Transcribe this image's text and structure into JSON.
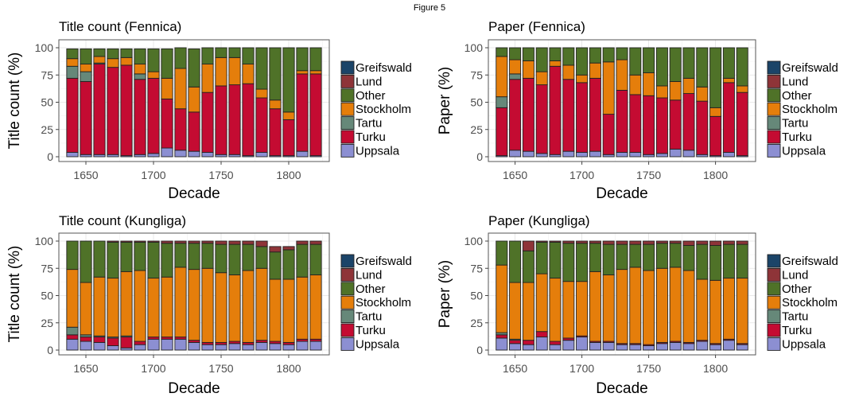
{
  "figure": {
    "title": "Figure 5"
  },
  "colors": {
    "Greifswald": "#1b4468",
    "Lund": "#8e3438",
    "Other": "#4f7228",
    "Stockholm": "#e57e0b",
    "Tartu": "#668879",
    "Turku": "#c40b32",
    "Uppsala": "#8c8fd2"
  },
  "chart_data": [
    {
      "type": "bar",
      "stacked": true,
      "title": "Title count (Fennica)",
      "xlabel": "Decade",
      "ylabel": "Title count (%)",
      "ylim": [
        0,
        100
      ],
      "xlim": [
        1630,
        1830
      ],
      "xticks": [
        1650,
        1700,
        1750,
        1800
      ],
      "yticks": [
        0,
        25,
        50,
        75,
        100
      ],
      "grid": true,
      "legend_position": "right",
      "legend": [
        "Greifswald",
        "Lund",
        "Other",
        "Stockholm",
        "Tartu",
        "Turku",
        "Uppsala"
      ],
      "categories": [
        1640,
        1650,
        1660,
        1670,
        1680,
        1690,
        1700,
        1710,
        1720,
        1730,
        1740,
        1750,
        1760,
        1770,
        1780,
        1790,
        1800,
        1810,
        1820
      ],
      "series": [
        {
          "name": "Uppsala",
          "values": [
            4,
            2,
            2,
            2,
            1,
            2,
            3,
            8,
            6,
            5,
            4,
            2,
            2,
            1,
            4,
            1,
            1,
            5,
            1
          ]
        },
        {
          "name": "Turku",
          "values": [
            68,
            67,
            83,
            80,
            83,
            69,
            69,
            45,
            38,
            36,
            55,
            63,
            64,
            66,
            50,
            43,
            33,
            71,
            75
          ]
        },
        {
          "name": "Tartu",
          "values": [
            11,
            9,
            1,
            0,
            0,
            5,
            0,
            0,
            0,
            0,
            0,
            0,
            0,
            0,
            0,
            0,
            0,
            0,
            0
          ]
        },
        {
          "name": "Stockholm",
          "values": [
            7,
            7,
            6,
            8,
            7,
            9,
            6,
            19,
            37,
            23,
            26,
            26,
            25,
            18,
            8,
            8,
            7,
            3,
            3
          ]
        },
        {
          "name": "Other",
          "values": [
            9,
            14,
            7,
            9,
            8,
            14,
            21,
            27,
            19,
            35,
            15,
            9,
            9,
            15,
            38,
            48,
            59,
            21,
            21
          ]
        },
        {
          "name": "Lund",
          "values": [
            0,
            0,
            0,
            0,
            0,
            0,
            0,
            0,
            0,
            0,
            0,
            0,
            0,
            0,
            0,
            0,
            0,
            0,
            0
          ]
        },
        {
          "name": "Greifswald",
          "values": [
            0,
            0,
            0,
            0,
            0,
            0,
            0,
            0,
            0,
            0,
            0,
            0,
            0,
            0,
            0,
            0,
            0,
            0,
            0
          ]
        }
      ]
    },
    {
      "type": "bar",
      "stacked": true,
      "title": "Paper (Fennica)",
      "xlabel": "Decade",
      "ylabel": "Paper (%)",
      "ylim": [
        0,
        100
      ],
      "xlim": [
        1630,
        1830
      ],
      "xticks": [
        1650,
        1700,
        1750,
        1800
      ],
      "yticks": [
        0,
        25,
        50,
        75,
        100
      ],
      "grid": true,
      "legend_position": "right",
      "legend": [
        "Greifswald",
        "Lund",
        "Other",
        "Stockholm",
        "Tartu",
        "Turku",
        "Uppsala"
      ],
      "categories": [
        1640,
        1650,
        1660,
        1670,
        1680,
        1690,
        1700,
        1710,
        1720,
        1730,
        1740,
        1750,
        1760,
        1770,
        1780,
        1790,
        1800,
        1810,
        1820
      ],
      "series": [
        {
          "name": "Uppsala",
          "values": [
            1,
            6,
            5,
            3,
            2,
            5,
            4,
            5,
            2,
            4,
            4,
            2,
            3,
            7,
            6,
            2,
            1,
            4,
            1
          ]
        },
        {
          "name": "Turku",
          "values": [
            44,
            65,
            67,
            63,
            81,
            66,
            64,
            67,
            37,
            57,
            53,
            54,
            51,
            45,
            52,
            49,
            36,
            64,
            58
          ]
        },
        {
          "name": "Tartu",
          "values": [
            10,
            5,
            0,
            0,
            0,
            0,
            0,
            0,
            0,
            0,
            0,
            0,
            0,
            0,
            0,
            0,
            0,
            0,
            0
          ]
        },
        {
          "name": "Stockholm",
          "values": [
            37,
            13,
            16,
            12,
            5,
            13,
            7,
            14,
            48,
            28,
            18,
            21,
            11,
            17,
            14,
            13,
            8,
            4,
            6
          ]
        },
        {
          "name": "Other",
          "values": [
            8,
            11,
            12,
            22,
            12,
            16,
            25,
            14,
            13,
            11,
            25,
            23,
            35,
            31,
            28,
            36,
            55,
            28,
            35
          ]
        },
        {
          "name": "Lund",
          "values": [
            0,
            0,
            0,
            0,
            0,
            0,
            0,
            0,
            0,
            0,
            0,
            0,
            0,
            0,
            0,
            0,
            0,
            0,
            0
          ]
        },
        {
          "name": "Greifswald",
          "values": [
            0,
            0,
            0,
            0,
            0,
            0,
            0,
            0,
            0,
            0,
            0,
            0,
            0,
            0,
            0,
            0,
            0,
            0,
            0
          ]
        }
      ]
    },
    {
      "type": "bar",
      "stacked": true,
      "title": "Title count (Kungliga)",
      "xlabel": "Decade",
      "ylabel": "Title count (%)",
      "ylim": [
        0,
        100
      ],
      "xlim": [
        1630,
        1830
      ],
      "xticks": [
        1650,
        1700,
        1750,
        1800
      ],
      "yticks": [
        0,
        25,
        50,
        75,
        100
      ],
      "grid": true,
      "legend_position": "right",
      "legend": [
        "Greifswald",
        "Lund",
        "Other",
        "Stockholm",
        "Tartu",
        "Turku",
        "Uppsala"
      ],
      "categories": [
        1640,
        1650,
        1660,
        1670,
        1680,
        1690,
        1700,
        1710,
        1720,
        1730,
        1740,
        1750,
        1760,
        1770,
        1780,
        1790,
        1800,
        1810,
        1820
      ],
      "series": [
        {
          "name": "Uppsala",
          "values": [
            10,
            8,
            7,
            4,
            2,
            5,
            10,
            10,
            10,
            7,
            5,
            5,
            6,
            5,
            7,
            6,
            5,
            8,
            8
          ]
        },
        {
          "name": "Turku",
          "values": [
            4,
            4,
            5,
            7,
            10,
            3,
            2,
            2,
            2,
            2,
            2,
            2,
            2,
            2,
            2,
            2,
            2,
            2,
            2
          ]
        },
        {
          "name": "Tartu",
          "values": [
            7,
            2,
            1,
            1,
            1,
            0,
            0,
            0,
            0,
            0,
            0,
            0,
            0,
            0,
            0,
            0,
            0,
            0,
            0
          ]
        },
        {
          "name": "Stockholm",
          "values": [
            53,
            48,
            54,
            54,
            59,
            65,
            54,
            55,
            64,
            65,
            68,
            64,
            61,
            66,
            66,
            57,
            58,
            57,
            59
          ]
        },
        {
          "name": "Other",
          "values": [
            26,
            38,
            33,
            33,
            27,
            26,
            33,
            31,
            22,
            24,
            23,
            26,
            28,
            24,
            20,
            25,
            27,
            30,
            28
          ]
        },
        {
          "name": "Lund",
          "values": [
            0,
            0,
            0,
            1,
            1,
            1,
            1,
            2,
            2,
            2,
            2,
            3,
            3,
            3,
            5,
            5,
            3,
            3,
            3
          ]
        },
        {
          "name": "Greifswald",
          "values": [
            0,
            0,
            0,
            0,
            0,
            0,
            0,
            0,
            0,
            0,
            0,
            0,
            0,
            0,
            0,
            0,
            0,
            0,
            0
          ]
        }
      ]
    },
    {
      "type": "bar",
      "stacked": true,
      "title": "Paper (Kungliga)",
      "xlabel": "Decade",
      "ylabel": "Paper (%)",
      "ylim": [
        0,
        100
      ],
      "xlim": [
        1630,
        1830
      ],
      "xticks": [
        1650,
        1700,
        1750,
        1800
      ],
      "yticks": [
        0,
        25,
        50,
        75,
        100
      ],
      "grid": true,
      "legend_position": "right",
      "legend": [
        "Greifswald",
        "Lund",
        "Other",
        "Stockholm",
        "Tartu",
        "Turku",
        "Uppsala"
      ],
      "categories": [
        1640,
        1650,
        1660,
        1670,
        1680,
        1690,
        1700,
        1710,
        1720,
        1730,
        1740,
        1750,
        1760,
        1770,
        1780,
        1790,
        1800,
        1810,
        1820
      ],
      "series": [
        {
          "name": "Uppsala",
          "values": [
            11,
            6,
            5,
            12,
            5,
            9,
            12,
            7,
            7,
            5,
            5,
            4,
            6,
            7,
            6,
            8,
            5,
            9,
            5
          ]
        },
        {
          "name": "Turku",
          "values": [
            3,
            3,
            4,
            5,
            3,
            2,
            1,
            1,
            1,
            1,
            1,
            1,
            1,
            1,
            1,
            1,
            1,
            1,
            1
          ]
        },
        {
          "name": "Tartu",
          "values": [
            2,
            1,
            0,
            0,
            0,
            0,
            0,
            0,
            0,
            0,
            0,
            0,
            0,
            0,
            0,
            0,
            0,
            0,
            0
          ]
        },
        {
          "name": "Stockholm",
          "values": [
            62,
            52,
            53,
            53,
            58,
            52,
            50,
            64,
            61,
            68,
            70,
            68,
            68,
            68,
            66,
            56,
            58,
            56,
            60
          ]
        },
        {
          "name": "Other",
          "values": [
            22,
            38,
            29,
            29,
            33,
            35,
            35,
            26,
            28,
            23,
            21,
            24,
            23,
            22,
            23,
            32,
            32,
            31,
            31
          ]
        },
        {
          "name": "Lund",
          "values": [
            0,
            0,
            9,
            1,
            1,
            2,
            2,
            2,
            3,
            3,
            3,
            3,
            2,
            2,
            4,
            3,
            4,
            3,
            3
          ]
        },
        {
          "name": "Greifswald",
          "values": [
            0,
            0,
            0,
            0,
            0,
            0,
            0,
            0,
            0,
            0,
            0,
            0,
            0,
            0,
            0,
            0,
            0,
            0,
            0
          ]
        }
      ]
    }
  ]
}
